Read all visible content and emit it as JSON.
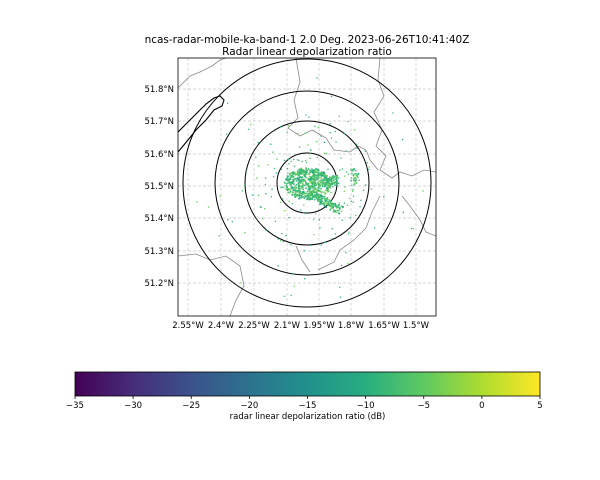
{
  "figure": {
    "title_line1": "ncas-radar-mobile-ka-band-1 2.0 Deg. 2023-06-26T10:41:40Z",
    "title_line2": "Radar linear depolarization ratio"
  },
  "map": {
    "lon_ticks": [
      "2.55°W",
      "2.4°W",
      "2.25°W",
      "2.1°W",
      "1.95°W",
      "1.8°W",
      "1.65°W",
      "1.5°W"
    ],
    "lat_ticks": [
      "51.8°N",
      "51.7°N",
      "51.6°N",
      "51.5°N",
      "51.4°N",
      "51.3°N",
      "51.2°N"
    ],
    "range_rings": 4,
    "colors": {
      "gridline": "#c8c8c8",
      "coastline": "#000000",
      "border": "#8a8a8a",
      "ring": "#000000"
    }
  },
  "colorbar": {
    "label": "radar linear depolarization ratio (dB)",
    "ticks": [
      "−35",
      "−30",
      "−25",
      "−20",
      "−15",
      "−10",
      "−5",
      "0",
      "5"
    ],
    "range": [
      -35,
      5
    ],
    "colormap": "viridis"
  }
}
